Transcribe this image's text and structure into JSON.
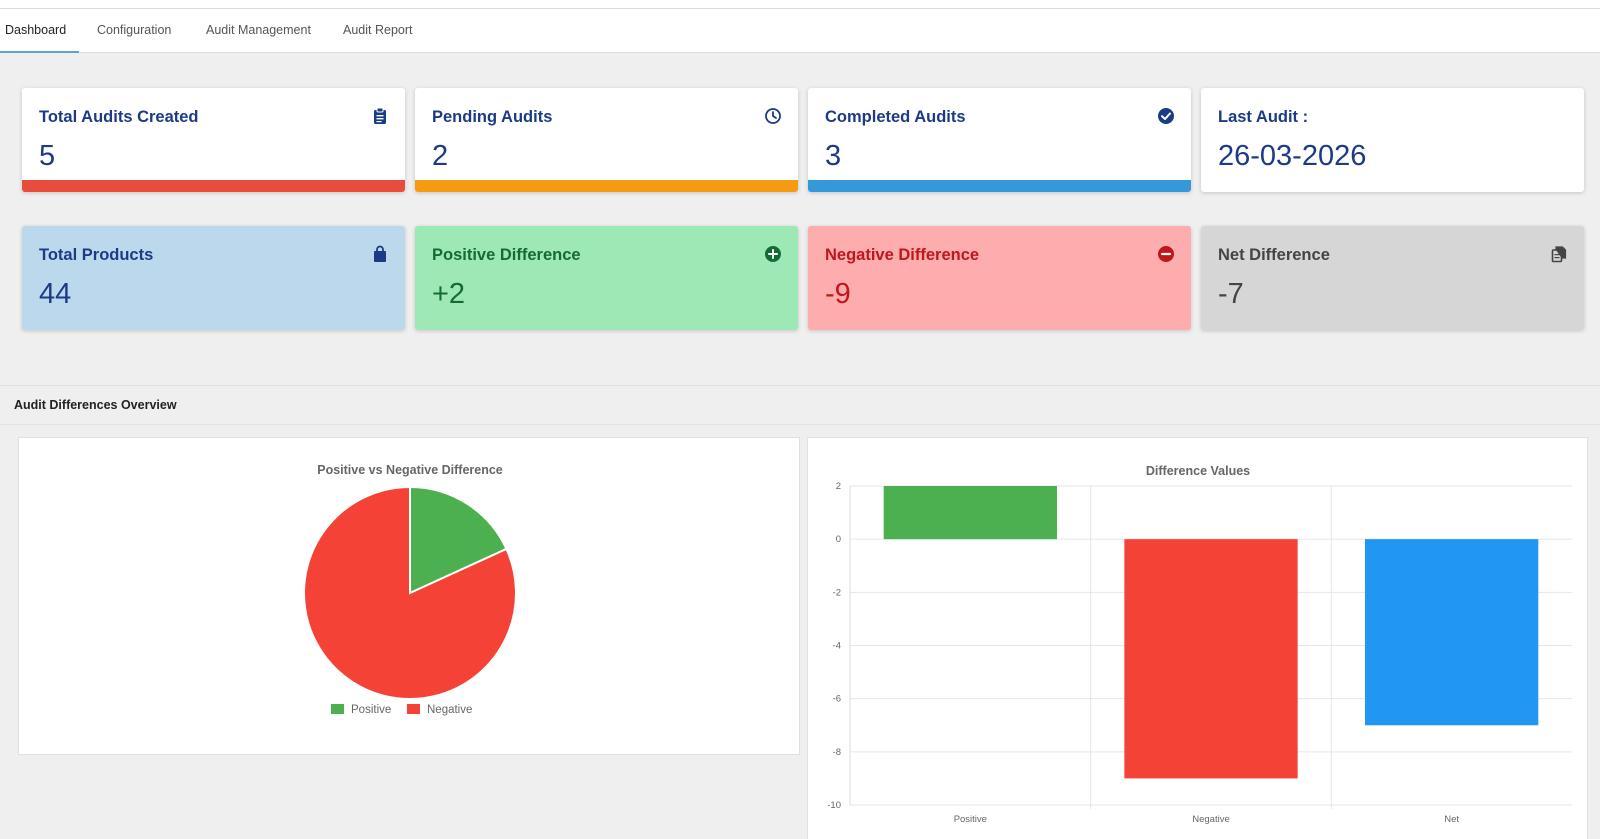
{
  "tabs": [
    {
      "label": "Dashboard",
      "active": true
    },
    {
      "label": "Configuration",
      "active": false
    },
    {
      "label": "Audit Management",
      "active": false
    },
    {
      "label": "Audit Report",
      "active": false
    }
  ],
  "cards_row1": [
    {
      "title": "Total Audits Created",
      "value": "5",
      "icon": "clipboard-icon",
      "accent": "#e74c3c"
    },
    {
      "title": "Pending Audits",
      "value": "2",
      "icon": "clock-icon",
      "accent": "#f39c12"
    },
    {
      "title": "Completed Audits",
      "value": "3",
      "icon": "check-circle-icon",
      "accent": "#3498db"
    },
    {
      "title": "Last Audit :",
      "value": "26-03-2026",
      "icon": "",
      "accent": ""
    }
  ],
  "cards_row2": [
    {
      "title": "Total Products",
      "value": "44",
      "icon": "shopping-bag-icon",
      "bg": "#bcd8ec",
      "color": "#1c3b86"
    },
    {
      "title": "Positive Difference",
      "value": "+2",
      "icon": "plus-circle-icon",
      "bg": "#9ee8b5",
      "color": "#146b34"
    },
    {
      "title": "Negative Difference",
      "value": "-9",
      "icon": "minus-circle-icon",
      "bg": "#fdadad",
      "color": "#c0161c"
    },
    {
      "title": "Net Difference",
      "value": "-7",
      "icon": "copy-file-icon",
      "bg": "#d6d6d6",
      "color": "#444444"
    }
  ],
  "section": {
    "title": "Audit Differences Overview"
  },
  "chart_data": [
    {
      "type": "pie",
      "title": "Positive vs Negative Difference",
      "labels": [
        "Positive",
        "Negative"
      ],
      "values": [
        2,
        9
      ],
      "colors": [
        "#4caf50",
        "#f44336"
      ],
      "legend": "bottom"
    },
    {
      "type": "bar",
      "title": "Difference Values",
      "categories": [
        "Positive",
        "Negative",
        "Net"
      ],
      "values": [
        2,
        -9,
        -7
      ],
      "colors": [
        "#4caf50",
        "#f44336",
        "#2196f3"
      ],
      "ylim": [
        -10,
        2
      ],
      "yticks": [
        2,
        0,
        -2,
        -4,
        -6,
        -8,
        -10
      ],
      "grid": true
    }
  ]
}
